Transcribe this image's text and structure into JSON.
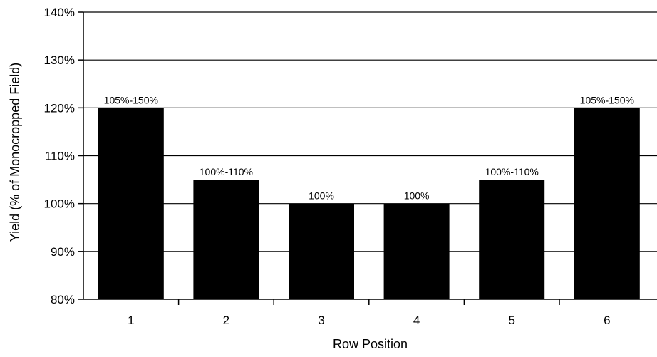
{
  "chart_data": {
    "type": "bar",
    "title": "",
    "xlabel": "Row Position",
    "ylabel": "Yield (% of Monocropped Field)",
    "categories": [
      "1",
      "2",
      "3",
      "4",
      "5",
      "6"
    ],
    "values": [
      120,
      105,
      100,
      100,
      105,
      120
    ],
    "value_unit": "%",
    "data_labels": [
      "105%-150%",
      "100%-110%",
      "100%",
      "100%",
      "100%-110%",
      "105%-150%"
    ],
    "ylim": [
      80,
      140
    ],
    "yticks": [
      80,
      90,
      100,
      110,
      120,
      130,
      140
    ],
    "ytick_labels": [
      "80%",
      "90%",
      "100%",
      "110%",
      "120%",
      "130%",
      "140%"
    ],
    "grid": true,
    "legend": "none",
    "bar_color": "#000000"
  }
}
